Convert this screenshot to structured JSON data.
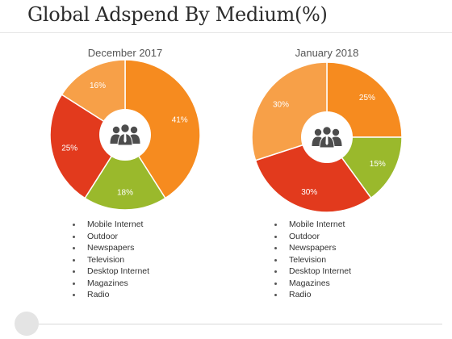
{
  "title": "Global Adspend By Medium(%)",
  "chart_data": [
    {
      "type": "pie",
      "title": "December 2017",
      "slices": [
        {
          "label": "41%",
          "value": 41,
          "color": "#f68b1f"
        },
        {
          "label": "18%",
          "value": 18,
          "color": "#9ab92c"
        },
        {
          "label": "25%",
          "value": 25,
          "color": "#e23a1d"
        },
        {
          "label": "16%",
          "value": 16,
          "color": "#f7a048"
        }
      ],
      "legend": [
        "Mobile Internet",
        "Outdoor",
        "Newspapers",
        "Television",
        "Desktop Internet",
        "Magazines",
        "Radio"
      ],
      "center_icon": "users-icon"
    },
    {
      "type": "pie",
      "title": "January 2018",
      "slices": [
        {
          "label": "25%",
          "value": 25,
          "color": "#f68b1f"
        },
        {
          "label": "15%",
          "value": 15,
          "color": "#9ab92c"
        },
        {
          "label": "30%",
          "value": 30,
          "color": "#e23a1d"
        },
        {
          "label": "30%",
          "value": 30,
          "color": "#f7a048"
        }
      ],
      "legend": [
        "Mobile Internet",
        "Outdoor",
        "Newspapers",
        "Television",
        "Desktop Internet",
        "Magazines",
        "Radio"
      ],
      "center_icon": "users-icon"
    }
  ]
}
